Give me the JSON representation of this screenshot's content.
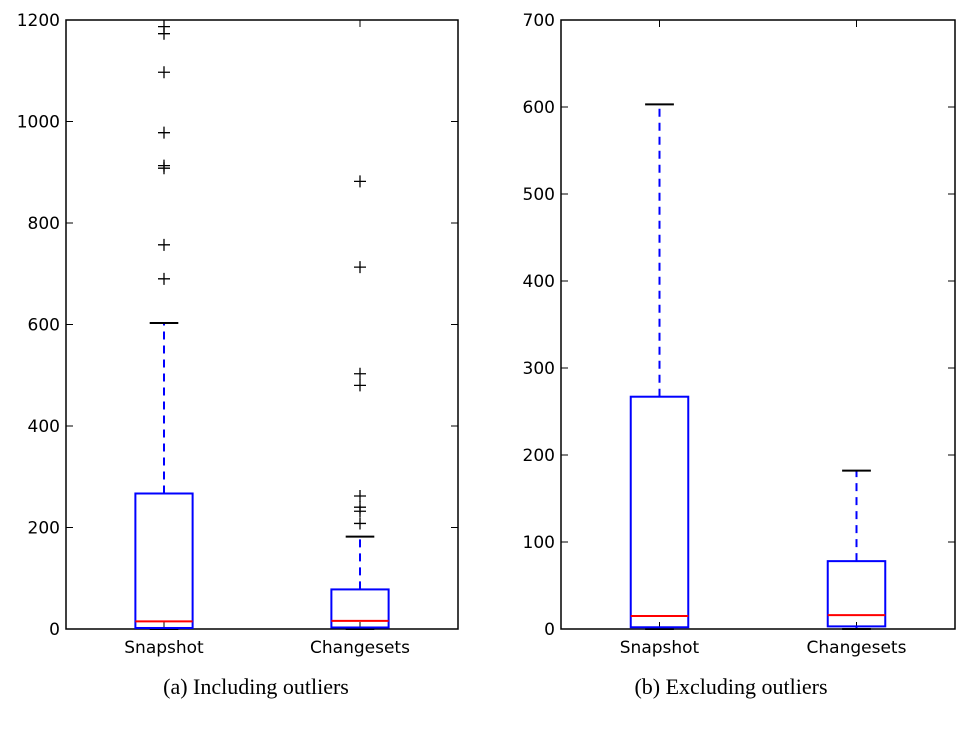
{
  "chart_data": [
    {
      "type": "box",
      "caption": "(a) Including outliers",
      "title": "",
      "xlabel": "",
      "ylabel": "",
      "ylim": [
        0,
        1200
      ],
      "yticks": [
        0,
        200,
        400,
        600,
        800,
        1000,
        1200
      ],
      "grid": false,
      "categories": [
        "Snapshot",
        "Changesets"
      ],
      "boxes": [
        {
          "name": "Snapshot",
          "whisker_low": 0,
          "q1": 2,
          "median": 15,
          "q3": 267,
          "whisker_high": 603,
          "outliers": [
            690,
            757,
            908,
            913,
            978,
            1097,
            1173,
            1187
          ]
        },
        {
          "name": "Changesets",
          "whisker_low": 0,
          "q1": 3,
          "median": 16,
          "q3": 78,
          "whisker_high": 182,
          "outliers": [
            208,
            232,
            240,
            262,
            480,
            503,
            713,
            882
          ]
        }
      ]
    },
    {
      "type": "box",
      "caption": "(b) Excluding outliers",
      "title": "",
      "xlabel": "",
      "ylabel": "",
      "ylim": [
        0,
        700
      ],
      "yticks": [
        0,
        100,
        200,
        300,
        400,
        500,
        600,
        700
      ],
      "grid": false,
      "categories": [
        "Snapshot",
        "Changesets"
      ],
      "boxes": [
        {
          "name": "Snapshot",
          "whisker_low": 0,
          "q1": 2,
          "median": 15,
          "q3": 267,
          "whisker_high": 603,
          "outliers": []
        },
        {
          "name": "Changesets",
          "whisker_low": 0,
          "q1": 3,
          "median": 16,
          "q3": 78,
          "whisker_high": 182,
          "outliers": []
        }
      ]
    }
  ],
  "colors": {
    "box": "#0000ff",
    "median": "#ff0000",
    "outlier": "#000000",
    "axis": "#000000"
  }
}
